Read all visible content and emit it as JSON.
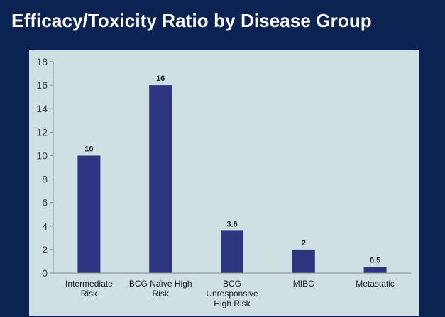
{
  "slide": {
    "title": "Efficacy/Toxicity Ratio by Disease Group"
  },
  "colors": {
    "background": "#0b2352",
    "panel": "#cfe0e3",
    "bar": "#2b3580",
    "axis": "#8a8a8a"
  },
  "chart_data": {
    "type": "bar",
    "title": "",
    "xlabel": "",
    "ylabel": "",
    "categories": [
      [
        "Intermediate",
        "Risk"
      ],
      [
        "BCG Naïve High",
        "Risk"
      ],
      [
        "BCG",
        "Unresponsive",
        "High Risk"
      ],
      [
        "MIBC"
      ],
      [
        "Metastatic"
      ]
    ],
    "values": [
      10,
      16,
      3.6,
      2,
      0.5
    ],
    "value_labels": [
      "10",
      "16",
      "3.6",
      "2",
      "0.5"
    ],
    "ylim": [
      0,
      18
    ],
    "yticks": [
      0,
      2,
      4,
      6,
      8,
      10,
      12,
      14,
      16,
      18
    ],
    "grid": false,
    "legend": "none"
  }
}
